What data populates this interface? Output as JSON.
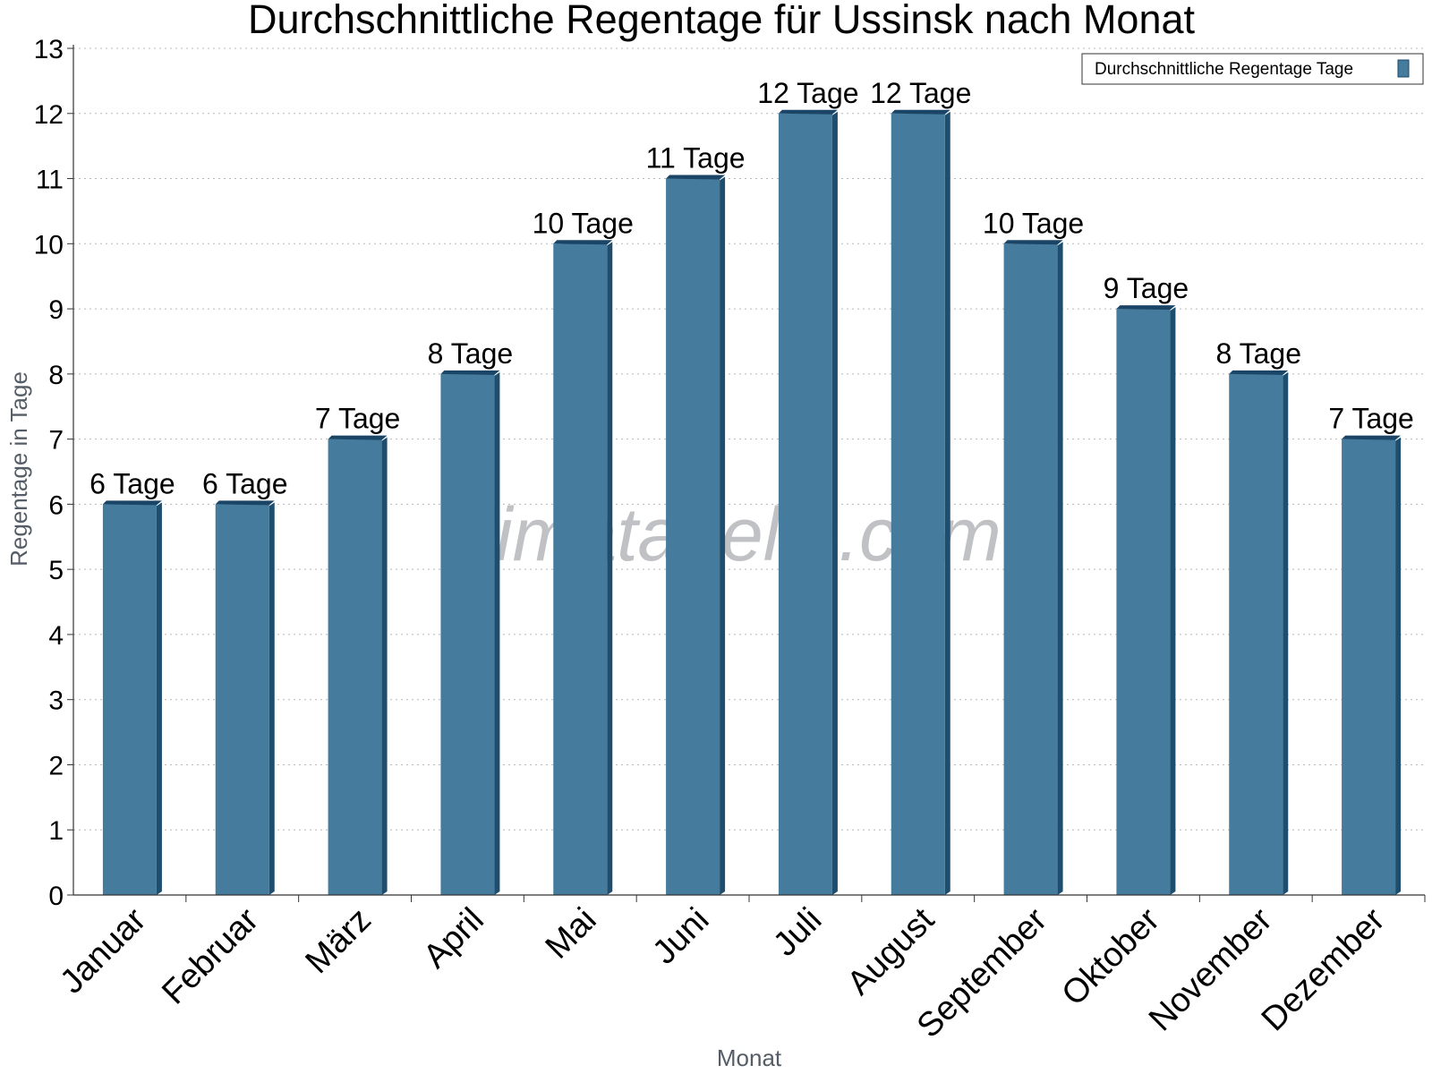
{
  "chart_data": {
    "type": "bar",
    "title": "Durchschnittliche Regentage für Ussinsk nach Monat",
    "xlabel": "Monat",
    "ylabel": "Regentage in Tage",
    "ylim": [
      0,
      13
    ],
    "yticks": [
      0,
      1,
      2,
      3,
      4,
      5,
      6,
      7,
      8,
      9,
      10,
      11,
      12,
      13
    ],
    "grid": true,
    "legend_position": "top-right",
    "categories": [
      "Januar",
      "Februar",
      "März",
      "April",
      "Mai",
      "Juni",
      "Juli",
      "August",
      "September",
      "Oktober",
      "November",
      "Dezember"
    ],
    "series": [
      {
        "name": "Durchschnittliche Regentage Tage",
        "color": "#457b9d",
        "values": [
          6,
          6,
          7,
          8,
          10,
          11,
          12,
          12,
          10,
          9,
          8,
          7
        ],
        "labels": [
          "6 Tage",
          "6 Tage",
          "7 Tage",
          "8 Tage",
          "10 Tage",
          "11 Tage",
          "12 Tage",
          "12 Tage",
          "10 Tage",
          "9 Tage",
          "8 Tage",
          "7 Tage"
        ]
      }
    ],
    "watermark": "klimatabelle.com"
  }
}
